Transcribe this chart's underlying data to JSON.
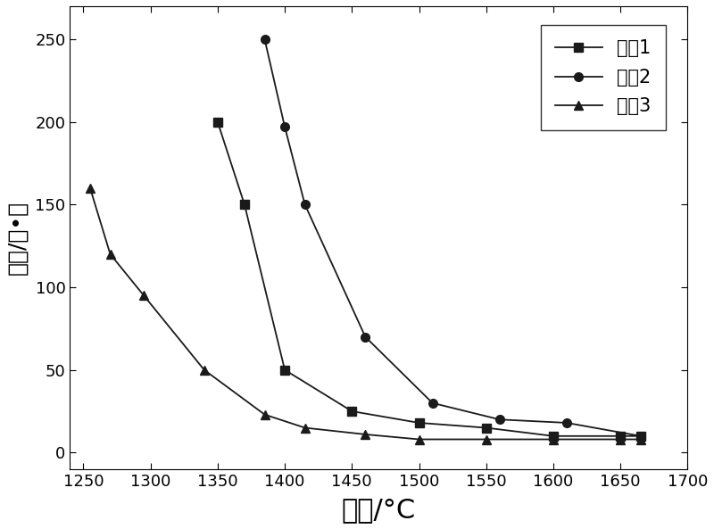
{
  "series": [
    {
      "label": "样品1",
      "marker": "s",
      "x": [
        1350,
        1370,
        1400,
        1450,
        1500,
        1550,
        1600,
        1650,
        1665
      ],
      "y": [
        200,
        150,
        50,
        25,
        18,
        15,
        10,
        10,
        10
      ]
    },
    {
      "label": "样品2",
      "marker": "o",
      "x": [
        1385,
        1400,
        1415,
        1460,
        1510,
        1560,
        1610,
        1665
      ],
      "y": [
        250,
        197,
        150,
        70,
        30,
        20,
        18,
        10
      ]
    },
    {
      "label": "样品3",
      "marker": "^",
      "x": [
        1255,
        1270,
        1295,
        1340,
        1385,
        1415,
        1460,
        1500,
        1550,
        1600,
        1650,
        1665
      ],
      "y": [
        160,
        120,
        95,
        50,
        23,
        15,
        11,
        8,
        8,
        8,
        8,
        8
      ]
    }
  ],
  "xlabel": "温度/°C",
  "ylabel": "粘度/帕•秒",
  "xlim": [
    1240,
    1700
  ],
  "ylim": [
    -10,
    270
  ],
  "xticks": [
    1250,
    1300,
    1350,
    1400,
    1450,
    1500,
    1550,
    1600,
    1650,
    1700
  ],
  "yticks": [
    0,
    50,
    100,
    150,
    200,
    250
  ],
  "line_color": "#1a1a1a",
  "background_color": "#ffffff",
  "xlabel_fontsize": 22,
  "ylabel_fontsize": 18,
  "tick_fontsize": 13,
  "legend_fontsize": 15
}
